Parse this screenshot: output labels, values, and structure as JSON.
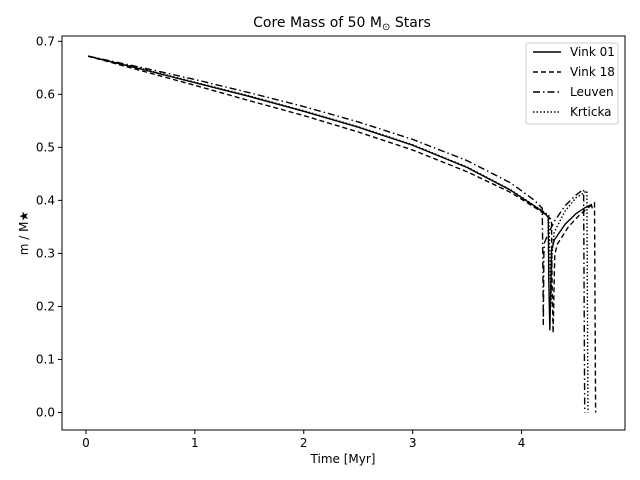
{
  "chart_data": {
    "type": "line",
    "title_prefix": "Core Mass of 50 M",
    "title_suffix": " Stars",
    "title_symbol": "sun-symbol",
    "xlabel": "Time [Myr]",
    "ylabel": "m / M★",
    "xlim": [
      -0.22,
      4.95
    ],
    "ylim": [
      -0.033,
      0.71
    ],
    "xticks": [
      0,
      1,
      2,
      3,
      4
    ],
    "yticks": [
      0.0,
      0.1,
      0.2,
      0.3,
      0.4,
      0.5,
      0.6,
      0.7
    ],
    "ytick_labels": [
      "0.0",
      "0.1",
      "0.2",
      "0.3",
      "0.4",
      "0.5",
      "0.6",
      "0.7"
    ],
    "grid": false,
    "legend_position": "top-right",
    "color": "#000000",
    "series": [
      {
        "name": "Vink 01",
        "style": "solid",
        "x": [
          0.02,
          0.5,
          1.0,
          1.5,
          2.0,
          2.5,
          3.0,
          3.5,
          3.9,
          4.15,
          4.22,
          4.245,
          4.25,
          4.26,
          4.27,
          4.275,
          4.3,
          4.4,
          4.5,
          4.58,
          4.62,
          4.64,
          4.65
        ],
        "y": [
          0.672,
          0.648,
          0.622,
          0.596,
          0.568,
          0.538,
          0.504,
          0.462,
          0.419,
          0.385,
          0.374,
          0.368,
          0.25,
          0.155,
          0.25,
          0.305,
          0.325,
          0.355,
          0.375,
          0.386,
          0.39,
          0.392,
          0.385
        ]
      },
      {
        "name": "Vink 18",
        "style": "dashed",
        "x": [
          0.02,
          0.5,
          1.0,
          1.5,
          2.0,
          2.5,
          3.0,
          3.5,
          3.9,
          4.15,
          4.24,
          4.275,
          4.28,
          4.29,
          4.3,
          4.305,
          4.33,
          4.43,
          4.53,
          4.61,
          4.66,
          4.67,
          4.675,
          4.68
        ],
        "y": [
          0.672,
          0.645,
          0.617,
          0.588,
          0.56,
          0.529,
          0.495,
          0.454,
          0.415,
          0.383,
          0.37,
          0.364,
          0.25,
          0.15,
          0.25,
          0.298,
          0.318,
          0.35,
          0.372,
          0.386,
          0.393,
          0.395,
          0.2,
          0.0
        ]
      },
      {
        "name": "Leuven",
        "style": "dashdot",
        "x": [
          0.02,
          0.5,
          1.0,
          1.5,
          2.0,
          2.5,
          3.0,
          3.5,
          3.9,
          4.12,
          4.19,
          4.195,
          4.2,
          4.205,
          4.21,
          4.24,
          4.3,
          4.4,
          4.5,
          4.55,
          4.57,
          4.575,
          4.58
        ],
        "y": [
          0.672,
          0.651,
          0.628,
          0.603,
          0.577,
          0.548,
          0.515,
          0.475,
          0.433,
          0.4,
          0.385,
          0.3,
          0.165,
          0.3,
          0.32,
          0.335,
          0.36,
          0.39,
          0.41,
          0.418,
          0.42,
          0.2,
          0.0
        ]
      },
      {
        "name": "Krticka",
        "style": "dotted",
        "x": [
          0.02,
          0.5,
          1.0,
          1.5,
          2.0,
          2.5,
          3.0,
          3.5,
          3.9,
          4.15,
          4.25,
          4.26,
          4.27,
          4.28,
          4.3,
          4.4,
          4.5,
          4.58,
          4.6,
          4.605,
          4.61
        ],
        "y": [
          0.672,
          0.649,
          0.623,
          0.597,
          0.569,
          0.539,
          0.505,
          0.463,
          0.42,
          0.386,
          0.372,
          0.3,
          0.2,
          0.3,
          0.34,
          0.38,
          0.405,
          0.415,
          0.418,
          0.2,
          0.0
        ]
      }
    ]
  }
}
